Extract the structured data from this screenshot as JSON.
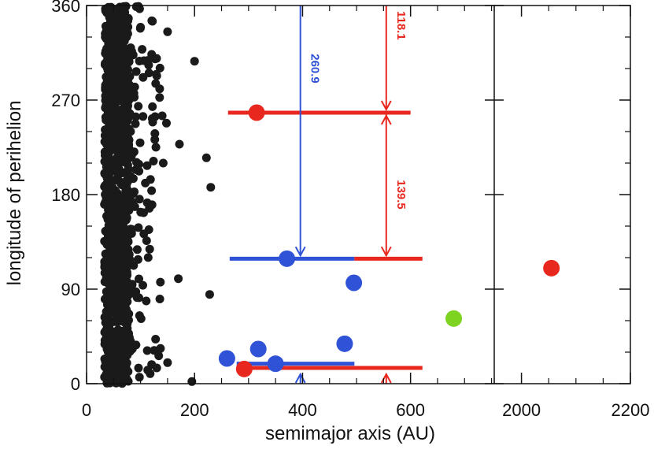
{
  "chart_data": {
    "type": "scatter",
    "title": "",
    "xlabel": "semimajor axis (AU)",
    "ylabel": "longitude of perihelion",
    "x_axis": {
      "segments": [
        {
          "xlim": [
            0,
            755
          ],
          "ticks": [
            0,
            200,
            400,
            600
          ],
          "tick_labels": [
            "0",
            "200",
            "400",
            "600"
          ]
        },
        {
          "xlim": [
            1950,
            2200
          ],
          "ticks": [
            2000,
            2200
          ],
          "tick_labels": [
            "2000",
            "2200"
          ]
        }
      ],
      "broken": true
    },
    "ylim": [
      0,
      360
    ],
    "yticks": [
      0,
      90,
      180,
      270,
      360
    ],
    "ytick_labels": [
      "0",
      "90",
      "180",
      "270",
      "360"
    ],
    "grid": false,
    "colors": {
      "background_points": "#1a1a1a",
      "red": "#e8281e",
      "blue": "#2f52d6",
      "green": "#7ed321",
      "axis": "#111111"
    },
    "series": [
      {
        "color": "red",
        "points": [
          {
            "x": 315,
            "y": 258,
            "err_x": [
              262,
              600
            ]
          },
          {
            "x": 292,
            "y": 14
          },
          {
            "x": 2055,
            "y": 110
          }
        ]
      },
      {
        "color": "blue",
        "points": [
          {
            "x": 371,
            "y": 119
          },
          {
            "x": 495,
            "y": 96
          },
          {
            "x": 260,
            "y": 24
          },
          {
            "x": 318,
            "y": 33
          },
          {
            "x": 350,
            "y": 19
          },
          {
            "x": 478,
            "y": 38
          }
        ]
      },
      {
        "color": "green",
        "points": [
          {
            "x": 680,
            "y": 62
          }
        ]
      }
    ],
    "error_bars": [
      {
        "color": "red",
        "y": 258,
        "x_range": [
          262,
          600
        ]
      },
      {
        "color": "blue",
        "y": 119,
        "x_range": [
          265,
          496
        ]
      },
      {
        "color": "red",
        "y": 119,
        "x_range": [
          496,
          622
        ]
      },
      {
        "color": "blue",
        "y": 19,
        "x_range": [
          278,
          496
        ]
      },
      {
        "color": "red",
        "y": 15,
        "x_range": [
          278,
          622
        ]
      }
    ],
    "annotations": [
      {
        "text": "118.1",
        "color": "red",
        "x": 555,
        "y_from": 360,
        "y_to": 258
      },
      {
        "text": "139.5",
        "color": "red",
        "x": 555,
        "y_from": 258,
        "y_to": 119,
        "double_headed": true
      },
      {
        "text": "260.9",
        "color": "blue",
        "x": 396,
        "y_from": 360,
        "y_to": 119
      }
    ],
    "background_scatter": {
      "color": "#1a1a1a",
      "dense_band_x": [
        33,
        78
      ],
      "note_points": [
        {
          "x": 200,
          "y": 307
        },
        {
          "x": 222,
          "y": 215
        },
        {
          "x": 230,
          "y": 187
        },
        {
          "x": 228,
          "y": 85
        },
        {
          "x": 170,
          "y": 100
        },
        {
          "x": 195,
          "y": 2
        },
        {
          "x": 150,
          "y": 20
        },
        {
          "x": 130,
          "y": 15
        },
        {
          "x": 122,
          "y": 345
        },
        {
          "x": 150,
          "y": 335
        },
        {
          "x": 172,
          "y": 228
        },
        {
          "x": 140,
          "y": 255
        },
        {
          "x": 148,
          "y": 248
        },
        {
          "x": 142,
          "y": 210
        }
      ]
    }
  }
}
